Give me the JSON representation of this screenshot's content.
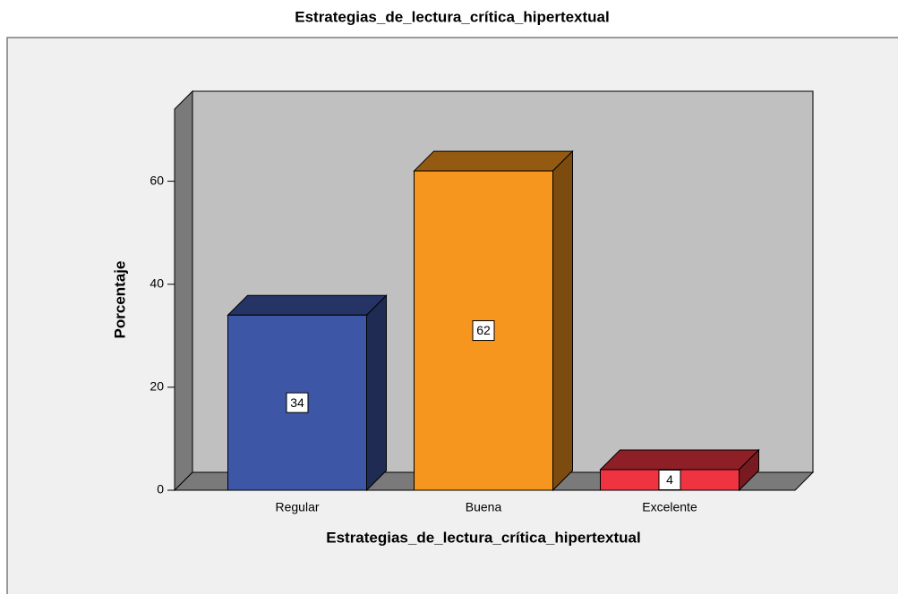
{
  "chart_data": {
    "type": "bar3d",
    "title": "Estrategias_de_lectura_crítica_hipertextual",
    "x_label": "Estrategias_de_lectura_crítica_hipertextual",
    "y_label": "Porcentaje",
    "categories": [
      "Regular",
      "Buena",
      "Excelente"
    ],
    "values": [
      34,
      62,
      4
    ],
    "colors": [
      "#3d56a6",
      "#f7961e",
      "#ef3340"
    ],
    "ylim": [
      0,
      74
    ],
    "yticks": [
      0,
      20,
      40,
      60
    ]
  }
}
